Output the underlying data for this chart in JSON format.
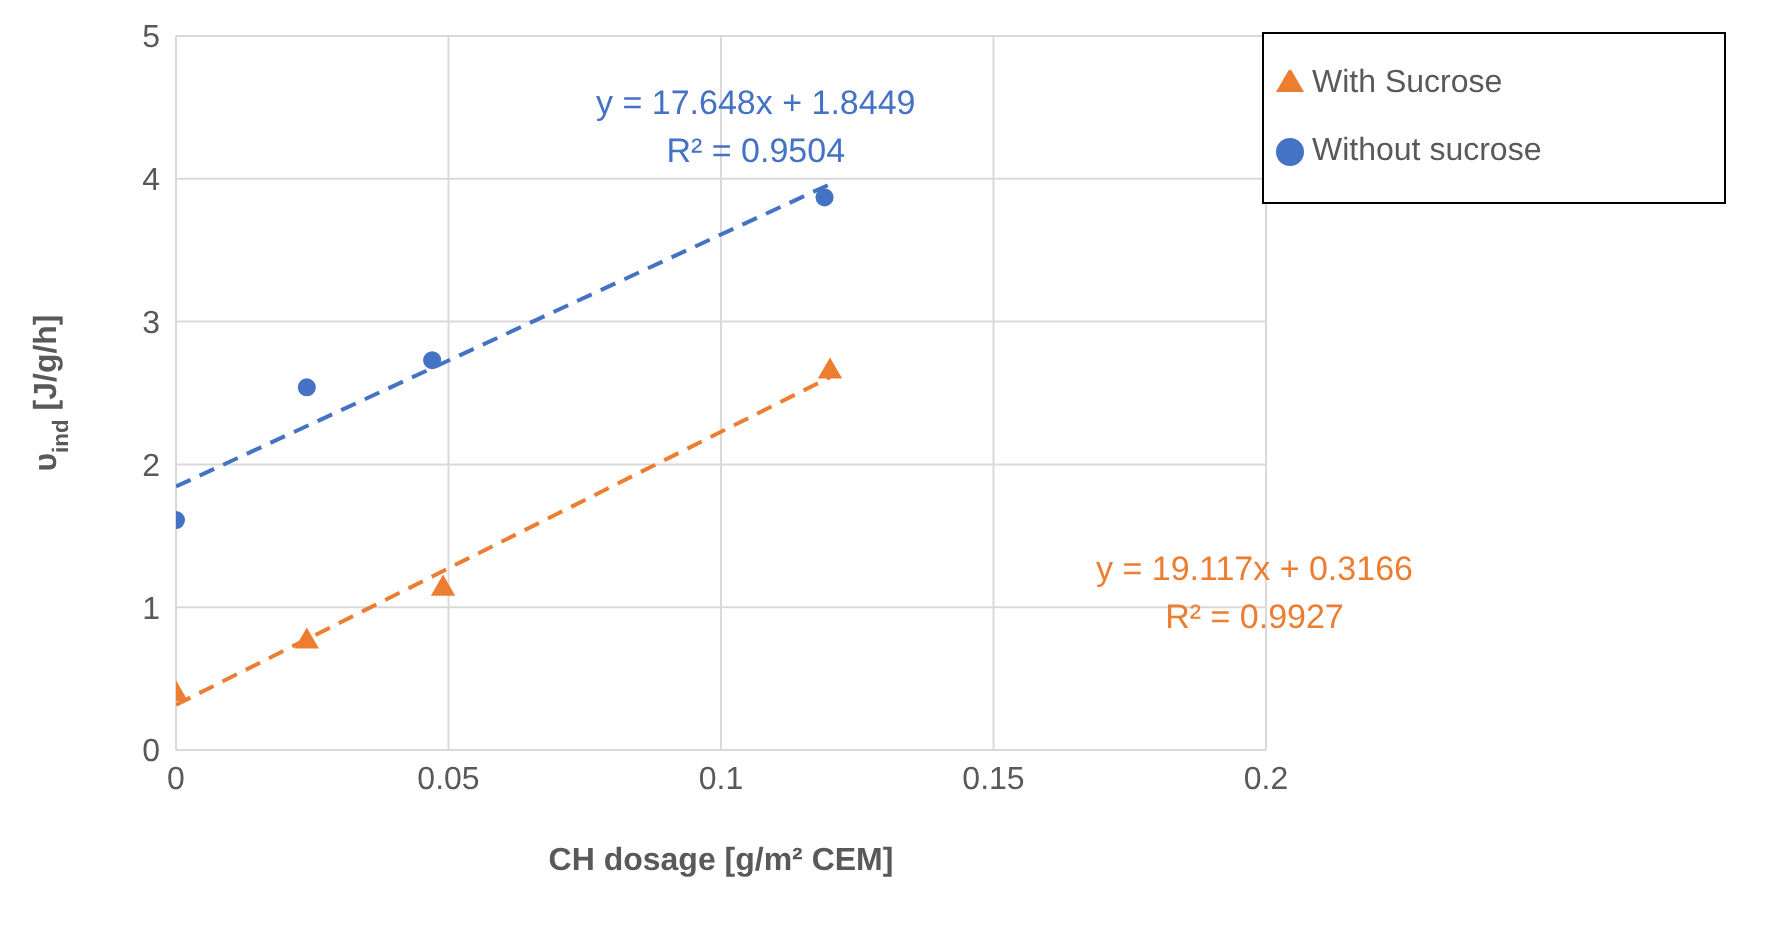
{
  "chart_data": {
    "type": "scatter",
    "xlabel": "CH dosage [g/m² CEM]",
    "ylabel": "υ$_{ind}$ [J/g/h]",
    "xlim": [
      0,
      0.2
    ],
    "xticks": [
      0,
      0.05,
      0.1,
      0.15,
      0.2
    ],
    "ylim": [
      0,
      5
    ],
    "yticks": [
      0,
      1,
      2,
      3,
      4,
      5
    ],
    "grid": true,
    "legend": "top right",
    "series": [
      {
        "name": "Without sucrose",
        "color": "#4472c4",
        "marker": "circle",
        "x": [
          0,
          0.024,
          0.047,
          0.119
        ],
        "values": [
          1.61,
          2.54,
          2.73,
          3.87
        ]
      },
      {
        "name": "With Sucrose",
        "color": "#ed7d31",
        "marker": "triangle",
        "x": [
          0,
          0.024,
          0.049,
          0.12
        ],
        "values": [
          0.39,
          0.76,
          1.13,
          2.65
        ]
      },
      {
        "type": "line",
        "color": "#4472c4",
        "line_style": "dashed",
        "x": [
          0,
          0.12
        ],
        "values": [
          1.8449,
          3.9627
        ]
      },
      {
        "type": "line",
        "color": "#ed7d31",
        "line_style": "dashed",
        "x": [
          0,
          0.12
        ],
        "values": [
          0.3166,
          2.6106
        ]
      }
    ],
    "annotations": [
      "y = 17.648x + 1.8449\nR² = 0.9504",
      "y = 19.117x + 0.3166\nR² = 0.9927"
    ]
  }
}
